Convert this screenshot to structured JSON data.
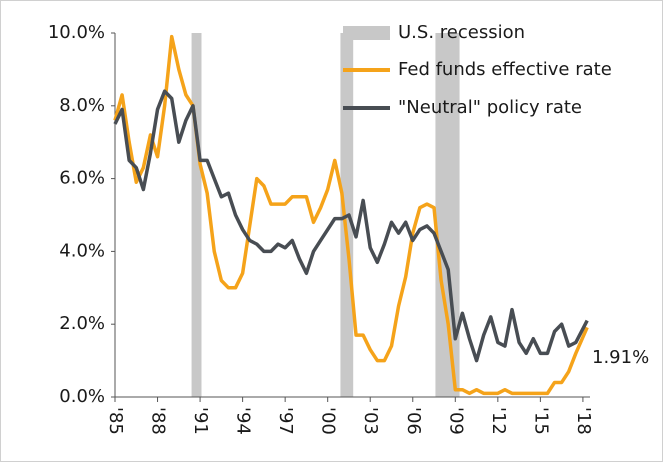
{
  "chart_data": {
    "type": "line",
    "x": [
      1985,
      1985.5,
      1986,
      1986.5,
      1987,
      1987.5,
      1988,
      1988.5,
      1989,
      1989.5,
      1990,
      1990.5,
      1991,
      1991.5,
      1992,
      1992.5,
      1993,
      1993.5,
      1994,
      1994.5,
      1995,
      1995.5,
      1996,
      1996.5,
      1997,
      1997.5,
      1998,
      1998.5,
      1999,
      1999.5,
      2000,
      2000.5,
      2001,
      2001.5,
      2002,
      2002.5,
      2003,
      2003.5,
      2004,
      2004.5,
      2005,
      2005.5,
      2006,
      2006.5,
      2007,
      2007.5,
      2008,
      2008.5,
      2009,
      2009.5,
      2010,
      2010.5,
      2011,
      2011.5,
      2012,
      2012.5,
      2013,
      2013.5,
      2014,
      2014.5,
      2015,
      2015.5,
      2016,
      2016.5,
      2017,
      2017.5,
      2018.3
    ],
    "series": [
      {
        "name": "Fed funds effective rate",
        "color": "#f5a31a",
        "values": [
          7.6,
          8.3,
          7.0,
          5.9,
          6.3,
          7.2,
          6.6,
          8.0,
          9.9,
          9.0,
          8.3,
          8.0,
          6.4,
          5.6,
          4.0,
          3.2,
          3.0,
          3.0,
          3.4,
          4.7,
          6.0,
          5.8,
          5.3,
          5.3,
          5.3,
          5.5,
          5.5,
          5.5,
          4.8,
          5.2,
          5.7,
          6.5,
          5.6,
          3.8,
          1.7,
          1.7,
          1.3,
          1.0,
          1.0,
          1.4,
          2.5,
          3.3,
          4.5,
          5.2,
          5.3,
          5.2,
          3.2,
          2.0,
          0.2,
          0.2,
          0.1,
          0.2,
          0.1,
          0.1,
          0.1,
          0.2,
          0.1,
          0.1,
          0.1,
          0.1,
          0.1,
          0.1,
          0.4,
          0.4,
          0.7,
          1.2,
          1.91
        ]
      },
      {
        "name": "\"Neutral\" policy rate",
        "color": "#484d53",
        "values": [
          7.5,
          7.9,
          6.5,
          6.3,
          5.7,
          6.7,
          7.9,
          8.4,
          8.2,
          7.0,
          7.6,
          8.0,
          6.5,
          6.5,
          6.0,
          5.5,
          5.6,
          5.0,
          4.6,
          4.3,
          4.2,
          4.0,
          4.0,
          4.2,
          4.1,
          4.3,
          3.8,
          3.4,
          4.0,
          4.3,
          4.6,
          4.9,
          4.9,
          5.0,
          4.4,
          5.4,
          4.1,
          3.7,
          4.2,
          4.8,
          4.5,
          4.8,
          4.3,
          4.6,
          4.7,
          4.5,
          4.0,
          3.5,
          1.6,
          2.3,
          1.6,
          1.0,
          1.7,
          2.2,
          1.5,
          1.4,
          2.4,
          1.5,
          1.2,
          1.6,
          1.2,
          1.2,
          1.8,
          2.0,
          1.4,
          1.5,
          2.1
        ]
      }
    ],
    "recession_name": "U.S. recession",
    "recession_color": "#c8c8c8",
    "recessions": [
      [
        1990.4,
        1991.1
      ],
      [
        2000.9,
        2001.8
      ],
      [
        2007.6,
        2009.3
      ]
    ],
    "annotation": "1.91%",
    "xlim": [
      1985,
      2018.5
    ],
    "xticks": [
      {
        "value": 1985,
        "label": "'85"
      },
      {
        "value": 1988,
        "label": "'88"
      },
      {
        "value": 1991,
        "label": "'91"
      },
      {
        "value": 1994,
        "label": "'94"
      },
      {
        "value": 1997,
        "label": "'97"
      },
      {
        "value": 2000,
        "label": "'00"
      },
      {
        "value": 2003,
        "label": "'03"
      },
      {
        "value": 2006,
        "label": "'06"
      },
      {
        "value": 2009,
        "label": "'09"
      },
      {
        "value": 2012,
        "label": "'12"
      },
      {
        "value": 2015,
        "label": "'15"
      },
      {
        "value": 2018,
        "label": "'18"
      }
    ],
    "ylim": [
      0,
      10
    ],
    "yticks": [
      {
        "value": 0,
        "label": "0.0%"
      },
      {
        "value": 2,
        "label": "2.0%"
      },
      {
        "value": 4,
        "label": "4.0%"
      },
      {
        "value": 6,
        "label": "6.0%"
      },
      {
        "value": 8,
        "label": "8.0%"
      },
      {
        "value": 10,
        "label": "10.0%"
      }
    ],
    "grid": false,
    "legend": "top-right"
  }
}
